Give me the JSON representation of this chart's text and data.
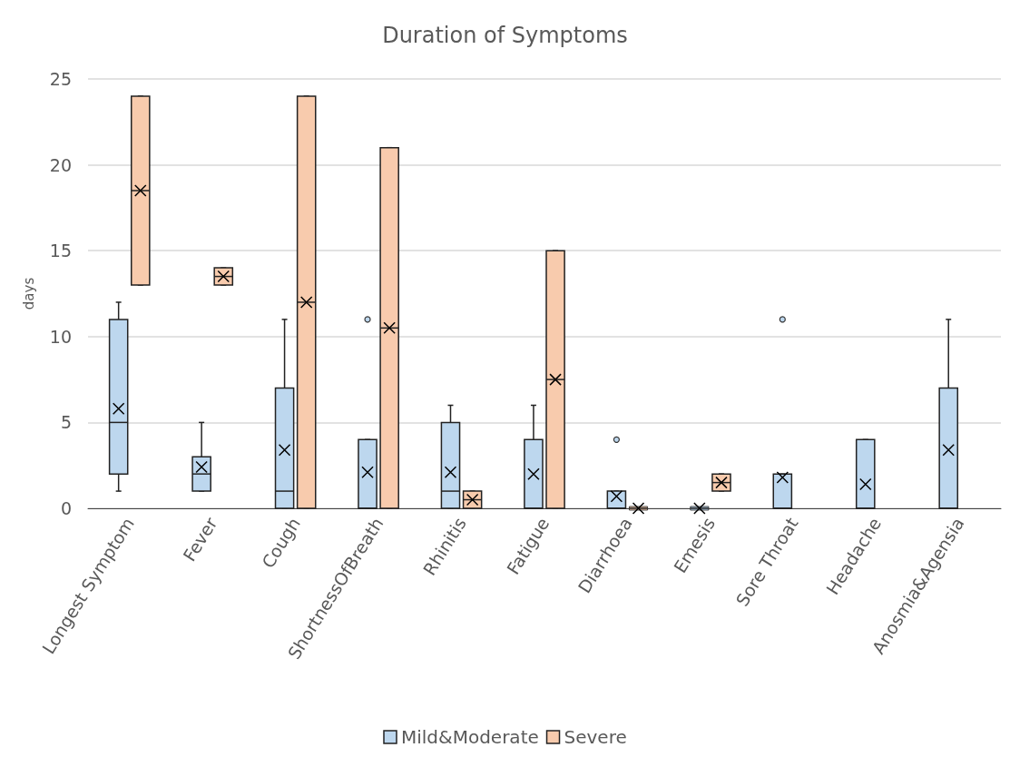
{
  "chart_data": {
    "type": "box",
    "title": "Duration of Symptoms",
    "ylabel": "days",
    "categories": [
      "Longest Symptom",
      "Fever",
      "Cough",
      "ShortnessOfBreath",
      "Rhinitis",
      "Fatigue",
      "Diarrhoea",
      "Emesis",
      "Sore Throat",
      "Headache",
      "Anosmia&Agensia"
    ],
    "ylim": [
      0,
      25
    ],
    "yticks": [
      0,
      5,
      10,
      15,
      20,
      25
    ],
    "grid": "y",
    "legend": "bottom",
    "series": [
      {
        "name": "Mild&Moderate",
        "color": "#bdd7ee",
        "boxes": [
          {
            "low": 1,
            "q1": 2,
            "median": 5,
            "q3": 11,
            "high": 12,
            "mean": 5.8
          },
          {
            "low": 1,
            "q1": 1,
            "median": 2,
            "q3": 3,
            "high": 5,
            "mean": 2.4
          },
          {
            "low": 0,
            "q1": 0,
            "median": 1,
            "q3": 7,
            "high": 11,
            "mean": 3.4
          },
          {
            "low": 0,
            "q1": 0,
            "median": 0,
            "q3": 4,
            "high": 4,
            "mean": 2.1,
            "outliers": [
              11
            ]
          },
          {
            "low": 0,
            "q1": 0,
            "median": 1,
            "q3": 5,
            "high": 6,
            "mean": 2.1
          },
          {
            "low": 0,
            "q1": 0,
            "median": 0,
            "q3": 4,
            "high": 6,
            "mean": 2.0
          },
          {
            "low": 0,
            "q1": 0,
            "median": 0,
            "q3": 1,
            "high": 1,
            "mean": 0.7,
            "outliers": [
              4
            ]
          },
          {
            "low": 0,
            "q1": 0,
            "median": 0,
            "q3": 0,
            "high": 0,
            "mean": 0
          },
          {
            "low": 0,
            "q1": 0,
            "median": 0,
            "q3": 2,
            "high": 2,
            "mean": 1.8,
            "outliers": [
              11
            ]
          },
          {
            "low": 0,
            "q1": 0,
            "median": 0,
            "q3": 4,
            "high": 4,
            "mean": 1.4
          },
          {
            "low": 0,
            "q1": 0,
            "median": 0,
            "q3": 7,
            "high": 11,
            "mean": 3.4
          }
        ]
      },
      {
        "name": "Severe",
        "color": "#f8cbad",
        "boxes": [
          {
            "low": 13,
            "q1": 13,
            "median": 18.5,
            "q3": 24,
            "high": 24,
            "mean": 18.5
          },
          {
            "low": 13,
            "q1": 13,
            "median": 13.5,
            "q3": 14,
            "high": 14,
            "mean": 13.5
          },
          {
            "low": 0,
            "q1": 0,
            "median": 12,
            "q3": 24,
            "high": 24,
            "mean": 12
          },
          {
            "low": 0,
            "q1": 0,
            "median": 10.5,
            "q3": 21,
            "high": 21,
            "mean": 10.5
          },
          {
            "low": 0,
            "q1": 0,
            "median": 0.5,
            "q3": 1,
            "high": 1,
            "mean": 0.5
          },
          {
            "low": 0,
            "q1": 0,
            "median": 7.5,
            "q3": 15,
            "high": 15,
            "mean": 7.5
          },
          {
            "low": 0,
            "q1": 0,
            "median": 0,
            "q3": 0,
            "high": 0,
            "mean": 0
          },
          {
            "low": 1,
            "q1": 1,
            "median": 1.5,
            "q3": 2,
            "high": 2,
            "mean": 1.5
          },
          null,
          null,
          null
        ]
      }
    ]
  }
}
